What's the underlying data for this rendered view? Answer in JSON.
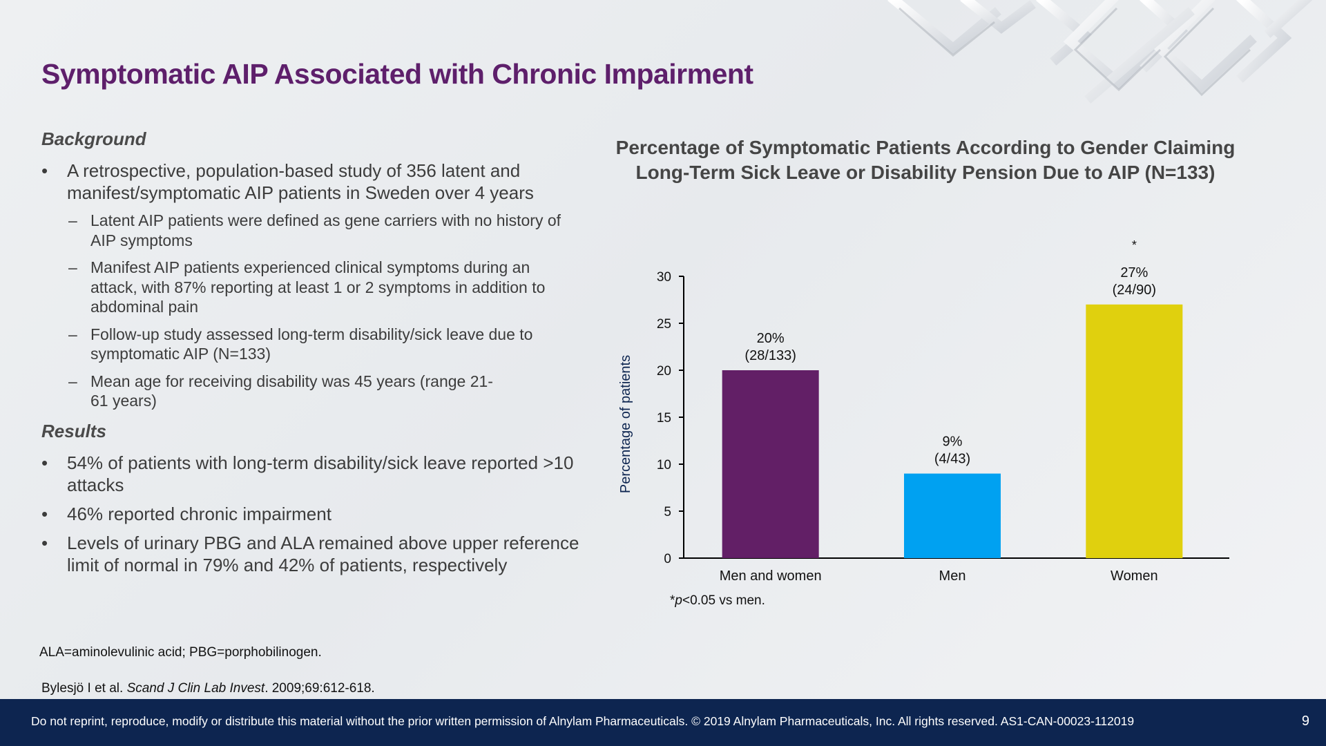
{
  "title": "Symptomatic AIP Associated with Chronic Impairment",
  "background": {
    "heading": "Background",
    "bullets": [
      {
        "text": "A retrospective, population-based study of 356 latent and manifest/symptomatic AIP patients in Sweden over 4 years",
        "subs": [
          "Latent AIP patients were defined as gene carriers with no history of AIP symptoms",
          "Manifest AIP patients experienced clinical symptoms during an attack, with 87% reporting at least 1 or 2 symptoms in addition to abdominal pain",
          "Follow-up study assessed long-term disability/sick leave due to symptomatic AIP (N=133)",
          "Mean age for receiving disability was 45 years (range 21-61 years)"
        ]
      }
    ]
  },
  "results": {
    "heading": "Results",
    "bullets": [
      "54% of patients with long-term disability/sick leave reported >10 attacks",
      "46% reported chronic impairment",
      "Levels of urinary PBG and ALA remained above upper reference limit of normal in 79% and 42% of patients, respectively"
    ]
  },
  "abbreviations": "ALA=aminolevulinic acid; PBG=porphobilinogen.",
  "reference": {
    "authors": "Bylesjö I et al. ",
    "journal": "Scand J Clin Lab Invest",
    "details": ". 2009;69:612-618."
  },
  "chart_data": {
    "type": "bar",
    "title": "Percentage of Symptomatic Patients According to Gender Claiming Long-Term Sick Leave or Disability Pension Due to AIP (N=133)",
    "ylabel": "Percentage of patients",
    "xlabel": "",
    "ylim": [
      0,
      30
    ],
    "yticks": [
      0,
      5,
      10,
      15,
      20,
      25,
      30
    ],
    "grid": false,
    "categories": [
      "Men and women",
      "Men",
      "Women"
    ],
    "values": [
      20,
      9,
      27
    ],
    "labels": [
      [
        "20%",
        "(28/133)"
      ],
      [
        "9%",
        "(4/43)"
      ],
      [
        "27%",
        "(24/90)"
      ]
    ],
    "colors": [
      "#621f66",
      "#00a1f1",
      "#e0d00e"
    ],
    "significance": [
      null,
      null,
      "*"
    ],
    "footnote": {
      "star": "*",
      "p": "p",
      "text": "<0.05 vs men."
    }
  },
  "footer": {
    "disclaimer": "Do not reprint, reproduce, modify or distribute this material without the prior written permission of Alnylam Pharmaceuticals. © 2019 Alnylam Pharmaceuticals, Inc. All rights reserved. AS1-CAN-00023-112019",
    "page": "9"
  }
}
